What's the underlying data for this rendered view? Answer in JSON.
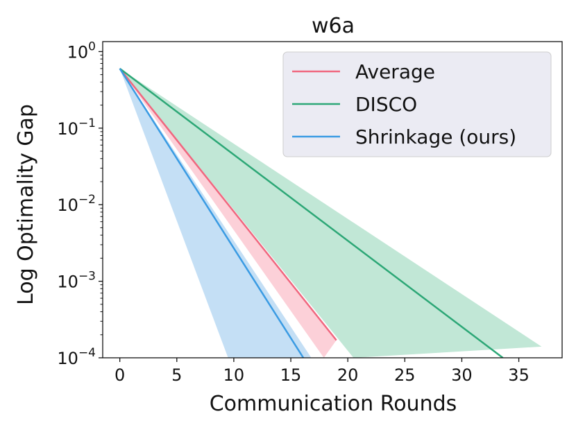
{
  "chart_data": {
    "type": "line",
    "title": "w6a",
    "xlabel": "Communication Rounds",
    "ylabel": "Log Optimality Gap",
    "yscale": "log",
    "xlim": [
      -1.5,
      38.8
    ],
    "ylim": [
      0.0001,
      1.35
    ],
    "xticks": [
      0,
      5,
      10,
      15,
      20,
      25,
      30,
      35
    ],
    "yticks": [
      {
        "value": 1,
        "base": "10",
        "exp": "0"
      },
      {
        "value": 0.1,
        "base": "10",
        "exp": "−1"
      },
      {
        "value": 0.01,
        "base": "10",
        "exp": "−2"
      },
      {
        "value": 0.001,
        "base": "10",
        "exp": "−3"
      },
      {
        "value": 0.0001,
        "base": "10",
        "exp": "−4"
      }
    ],
    "legend_position": "top-right",
    "series": [
      {
        "name": "Average",
        "color": "#f0677f",
        "band_color": "#fcd0d8",
        "line": {
          "x": [
            0,
            19
          ],
          "y": [
            0.6,
            0.00017
          ]
        },
        "band": {
          "x_upper": [
            0,
            19
          ],
          "y_upper": [
            0.6,
            0.00017
          ],
          "x_lower": [
            0,
            17.9
          ],
          "y_lower": [
            0.6,
            0.0001
          ]
        }
      },
      {
        "name": "DISCO",
        "color": "#2ca776",
        "band_color": "#c1e7d6",
        "line": {
          "x": [
            0,
            33.6
          ],
          "y": [
            0.6,
            0.0001
          ]
        },
        "band": {
          "x_upper": [
            0,
            37
          ],
          "y_upper": [
            0.6,
            0.00014
          ],
          "x_lower": [
            0,
            20.5
          ],
          "y_lower": [
            0.6,
            0.0001
          ]
        }
      },
      {
        "name": "Shrinkage (ours)",
        "color": "#3a9be3",
        "band_color": "#c4dff5",
        "line": {
          "x": [
            0,
            16.1
          ],
          "y": [
            0.6,
            0.0001
          ]
        },
        "band": {
          "x_upper": [
            0,
            16.8
          ],
          "y_upper": [
            0.6,
            0.0001
          ],
          "x_lower": [
            0,
            9.5
          ],
          "y_lower": [
            0.6,
            0.0001
          ]
        }
      }
    ]
  }
}
